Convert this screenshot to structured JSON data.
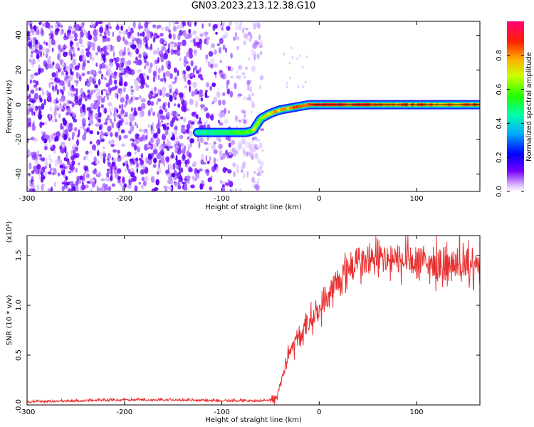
{
  "figure": {
    "title": "GN03.2023.213.12.38.G10"
  },
  "chart_data": [
    {
      "type": "heatmap",
      "xlabel": "Height of straight line (km)",
      "ylabel": "Frequency (Hz)",
      "xlim": [
        -300,
        165
      ],
      "ylim": [
        -50,
        48
      ],
      "xticks": [
        -300,
        -200,
        -100,
        0,
        100
      ],
      "yticks": [
        -40,
        -20,
        0,
        20,
        40
      ],
      "grid": false,
      "colorbar": {
        "label": "Normalized spectral amplitude",
        "range": [
          0,
          1
        ],
        "ticks": [
          "0.0",
          "0.2",
          "0.4",
          "0.6",
          "0.8"
        ],
        "colors": [
          "#ffffff",
          "#cc99ff",
          "#6600ff",
          "#0000ff",
          "#00ccff",
          "#00ff66",
          "#ccff00",
          "#ff6600",
          "#ff0000",
          "#ff0066"
        ]
      },
      "signal_track": {
        "x": [
          -125,
          -100,
          -75,
          -68,
          -60,
          -50,
          -40,
          -30,
          -20,
          -10,
          0,
          20,
          50,
          100,
          165
        ],
        "y": [
          -16,
          -16,
          -16,
          -15,
          -8,
          -5,
          -3,
          -2,
          -1,
          0,
          0,
          0,
          0,
          0,
          0
        ],
        "amplitude": [
          0.45,
          0.5,
          0.6,
          0.7,
          0.7,
          0.75,
          0.8,
          0.85,
          0.9,
          0.9,
          0.95,
          0.95,
          0.9,
          0.85,
          0.85
        ]
      },
      "noise_region": {
        "x_range": [
          -300,
          -58
        ],
        "amplitude_range": [
          0.0,
          0.15
        ]
      }
    },
    {
      "type": "line",
      "xlabel": "Height of straight line (km)",
      "ylabel": "SNR (10 * v/v)",
      "scale_label": "(x10⁴)",
      "xlim": [
        -300,
        165
      ],
      "ylim": [
        0,
        1.7
      ],
      "xticks": [
        -300,
        -200,
        -100,
        0,
        100
      ],
      "yticks": [
        "0.0",
        "0.5",
        "1.0",
        "1.5"
      ],
      "grid": false,
      "series": [
        {
          "color": "#e83030",
          "x": [
            -300,
            -250,
            -200,
            -150,
            -100,
            -60,
            -45,
            -40,
            -35,
            -30,
            -25,
            -20,
            -15,
            -10,
            -5,
            0,
            10,
            20,
            30,
            40,
            60,
            80,
            100,
            120,
            140,
            165
          ],
          "y": [
            0.02,
            0.03,
            0.04,
            0.04,
            0.03,
            0.03,
            0.05,
            0.2,
            0.4,
            0.55,
            0.6,
            0.7,
            0.75,
            0.85,
            0.9,
            0.95,
            1.1,
            1.25,
            1.35,
            1.42,
            1.45,
            1.43,
            1.42,
            1.4,
            1.38,
            1.35
          ]
        }
      ]
    }
  ]
}
